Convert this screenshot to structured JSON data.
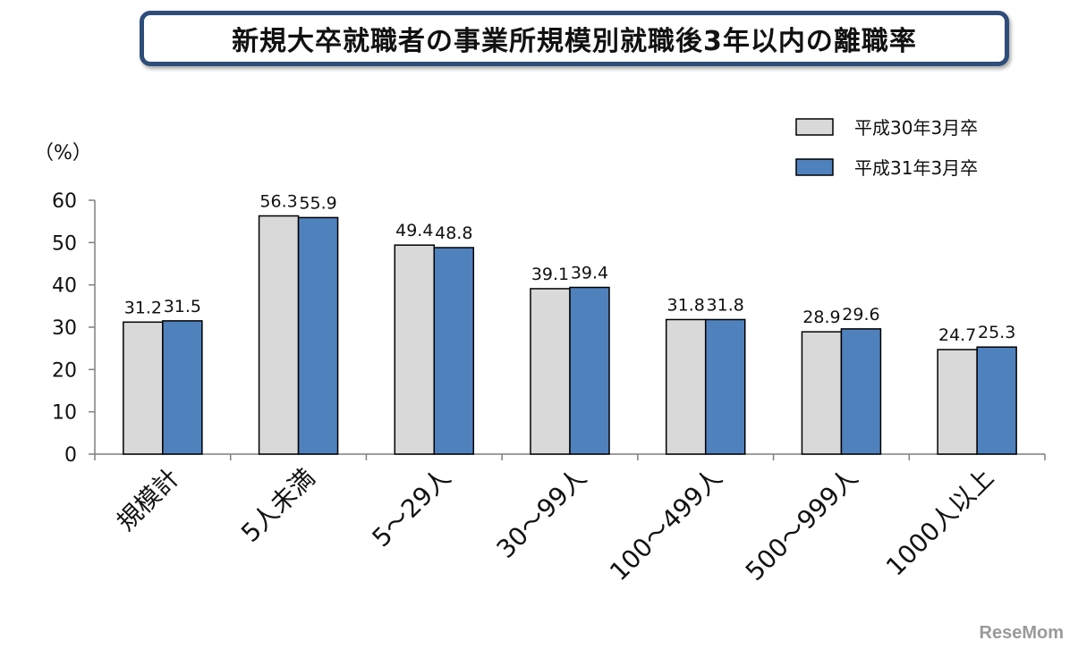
{
  "title": "新規大卒就職者の事業所規模別就職後3年以内の離職率",
  "watermark": "ReseMom",
  "chart_data": {
    "type": "bar",
    "unit_label": "（%）",
    "categories": [
      "規模計",
      "5人未満",
      "5～29人",
      "30～99人",
      "100～499人",
      "500～999人",
      "1000人以上"
    ],
    "series": [
      {
        "name": "平成30年3月卒",
        "values": [
          31.2,
          56.3,
          49.4,
          39.1,
          31.8,
          28.9,
          24.7
        ],
        "color": "#d9d9d9"
      },
      {
        "name": "平成31年3月卒",
        "values": [
          31.5,
          55.9,
          48.8,
          39.4,
          31.8,
          29.6,
          25.3
        ],
        "color": "#4f81bd"
      }
    ],
    "ylim": [
      0,
      60
    ],
    "yticks": [
      0,
      10,
      20,
      30,
      40,
      50,
      60
    ],
    "legend_position": "top-right",
    "grid": false
  }
}
